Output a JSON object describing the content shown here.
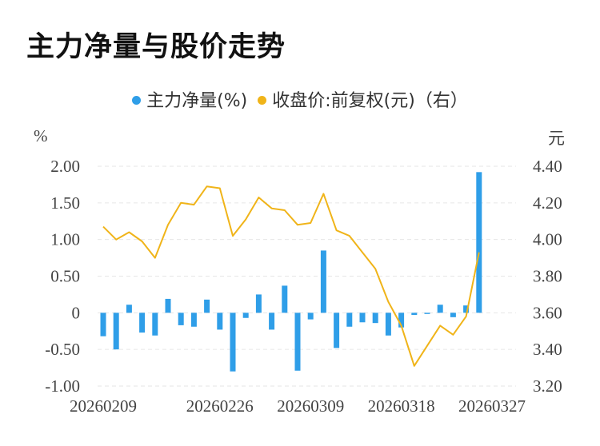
{
  "title": "主力净量与股价走势",
  "legend": {
    "net": "主力净量(%)",
    "price": "收盘价:前复权(元)（右）"
  },
  "units": {
    "left": "%",
    "right": "元"
  },
  "colors": {
    "bar": "#2f9ee8",
    "line": "#f0b419",
    "grid": "#e6e6e6",
    "text": "#444444",
    "title": "#111111"
  },
  "chart_data": {
    "type": "bar",
    "x_tick_labels": [
      "20260209",
      "20260226",
      "20260309",
      "20260318",
      "20260327"
    ],
    "x_tick_indices": [
      0,
      9,
      16,
      23,
      30
    ],
    "y_left": {
      "min": -1.0,
      "max": 2.0,
      "ticks": [
        2.0,
        1.5,
        1.0,
        0.5,
        0,
        -0.5,
        -1.0
      ],
      "tick_labels": [
        "2.00",
        "1.50",
        "1.00",
        "0.50",
        "0",
        "-0.50",
        "-1.00"
      ]
    },
    "y_right": {
      "min": 3.2,
      "max": 4.4,
      "ticks": [
        4.4,
        4.2,
        4.0,
        3.8,
        3.6,
        3.4,
        3.2
      ],
      "tick_labels": [
        "4.40",
        "4.20",
        "4.00",
        "3.80",
        "3.60",
        "3.40",
        "3.20"
      ]
    },
    "series": [
      {
        "name": "主力净量(%)",
        "type": "bar",
        "axis": "left",
        "values": [
          -0.32,
          -0.5,
          0.11,
          -0.27,
          -0.31,
          0.19,
          -0.17,
          -0.19,
          0.18,
          -0.23,
          -0.8,
          -0.07,
          0.25,
          -0.23,
          0.37,
          -0.79,
          -0.09,
          0.85,
          -0.48,
          -0.19,
          -0.13,
          -0.14,
          -0.31,
          -0.2,
          -0.03,
          -0.01,
          0.11,
          -0.06,
          0.1,
          1.92
        ]
      },
      {
        "name": "收盘价:前复权(元)（右）",
        "type": "line",
        "axis": "right",
        "values": [
          4.07,
          4.0,
          4.04,
          3.99,
          3.9,
          4.08,
          4.2,
          4.19,
          4.29,
          4.28,
          4.02,
          4.11,
          4.23,
          4.17,
          4.16,
          4.08,
          4.09,
          4.25,
          4.05,
          4.02,
          3.93,
          3.84,
          3.66,
          3.53,
          3.31,
          3.42,
          3.53,
          3.48,
          3.58,
          3.93
        ]
      }
    ]
  }
}
